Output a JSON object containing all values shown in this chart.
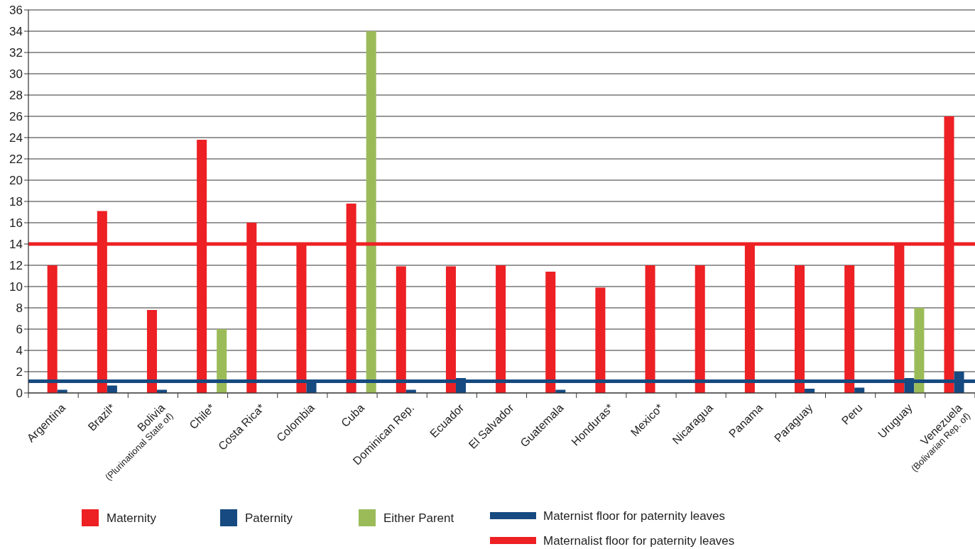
{
  "chart_data": {
    "type": "bar",
    "categories": [
      "Argentina",
      "Brazil*",
      "Bolivia (Plurinational State of)",
      "Chile*",
      "Costa Rica*",
      "Colombia",
      "Cuba",
      "Dominican Rep.",
      "Ecuador",
      "El Salvador",
      "Guatemala",
      "Honduras*",
      "Mexico*",
      "Nicaragua",
      "Panama",
      "Paraguay",
      "Peru",
      "Uruguay",
      "Venezuela (Bolivarian Rep. of)"
    ],
    "series": [
      {
        "name": "Maternity",
        "color": "#ed2024",
        "values": [
          12,
          17.1,
          7.8,
          23.8,
          16,
          14,
          17.8,
          11.9,
          11.9,
          12,
          11.4,
          9.9,
          12,
          12,
          14,
          12,
          12,
          14,
          26
        ]
      },
      {
        "name": "Paternity",
        "color": "#164a80",
        "values": [
          0.3,
          0.7,
          0.3,
          null,
          null,
          1.1,
          null,
          0.3,
          1.4,
          null,
          0.3,
          null,
          null,
          null,
          null,
          0.4,
          0.5,
          1.4,
          2
        ]
      },
      {
        "name": "Either Parent",
        "color": "#9bbb59",
        "values": [
          null,
          null,
          null,
          6,
          null,
          null,
          34,
          null,
          null,
          null,
          null,
          null,
          null,
          null,
          null,
          null,
          null,
          8,
          null
        ]
      }
    ],
    "ylim": [
      0,
      36
    ],
    "yticks": [
      0,
      2,
      4,
      6,
      8,
      10,
      12,
      14,
      16,
      18,
      20,
      22,
      24,
      26,
      28,
      30,
      32,
      34,
      36
    ],
    "grid": "y",
    "legend": "bottom",
    "ref_lines": [
      {
        "axis": "y",
        "value": 1.1,
        "label": "Maternist floor for paternity leaves",
        "color": "#164a80"
      },
      {
        "axis": "y",
        "value": 14,
        "label": "Maternalist floor for paternity leaves",
        "color": "#ed2024"
      }
    ]
  }
}
